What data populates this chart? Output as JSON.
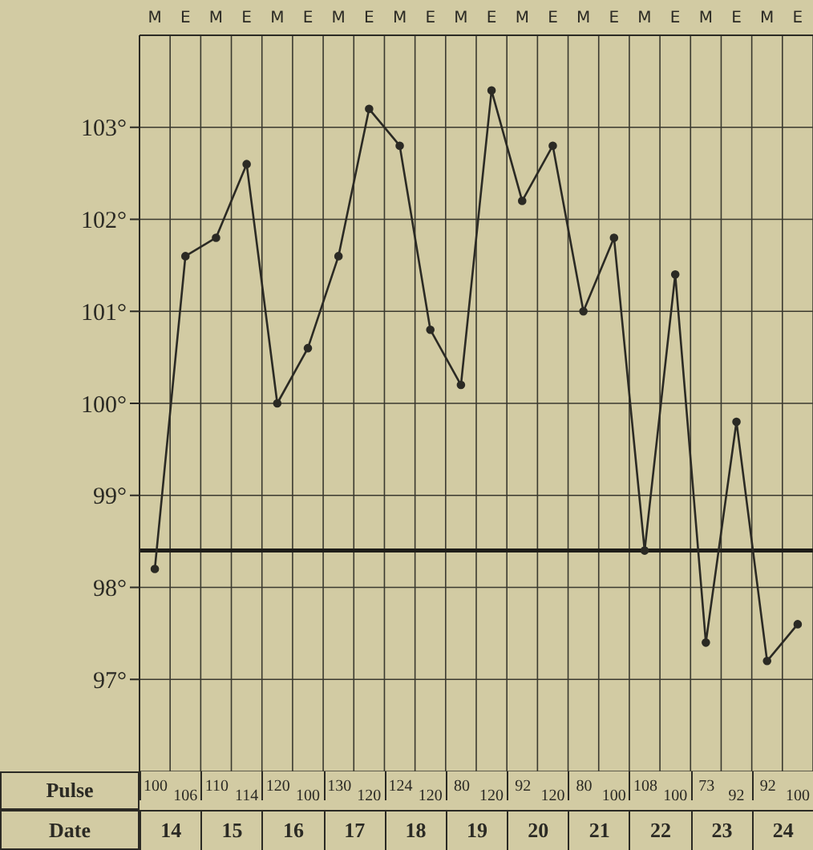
{
  "chart_data": {
    "type": "line",
    "categories": [
      "M",
      "E",
      "M",
      "E",
      "M",
      "E",
      "M",
      "E",
      "M",
      "E",
      "M",
      "E",
      "M",
      "E",
      "M",
      "E",
      "M",
      "E",
      "M",
      "E",
      "M",
      "E"
    ],
    "series": [
      {
        "color": "#2b2a24",
        "values": [
          98.2,
          101.6,
          101.8,
          102.6,
          100.0,
          100.6,
          101.6,
          103.2,
          102.8,
          100.8,
          100.2,
          103.4,
          102.2,
          102.8,
          101.0,
          101.8,
          98.4,
          101.4,
          97.4,
          99.8,
          97.2,
          97.6
        ]
      }
    ],
    "ylim": [
      96,
      104
    ],
    "yticks": [
      {
        "value": 97,
        "label": "97°"
      },
      {
        "value": 98,
        "label": "98°"
      },
      {
        "value": 99,
        "label": "99°"
      },
      {
        "value": 100,
        "label": "100°"
      },
      {
        "value": 101,
        "label": "101°"
      },
      {
        "value": 102,
        "label": "102°"
      },
      {
        "value": 103,
        "label": "103°"
      }
    ],
    "ref_lines": [
      {
        "axis": "y",
        "value": 98.4,
        "color": "#1e1d18"
      }
    ],
    "grid": true,
    "marker": "circle",
    "line_style": "solid",
    "annotations": [
      "Pulse",
      "100",
      "106",
      "110",
      "114",
      "120",
      "100",
      "130",
      "120",
      "124",
      "120",
      "80",
      "120",
      "92",
      "120",
      "80",
      "100",
      "108",
      "100",
      "73",
      "92",
      "92",
      "100",
      "Date",
      "14",
      "15",
      "16",
      "17",
      "18",
      "19",
      "20",
      "21",
      "22",
      "23",
      "24"
    ]
  }
}
